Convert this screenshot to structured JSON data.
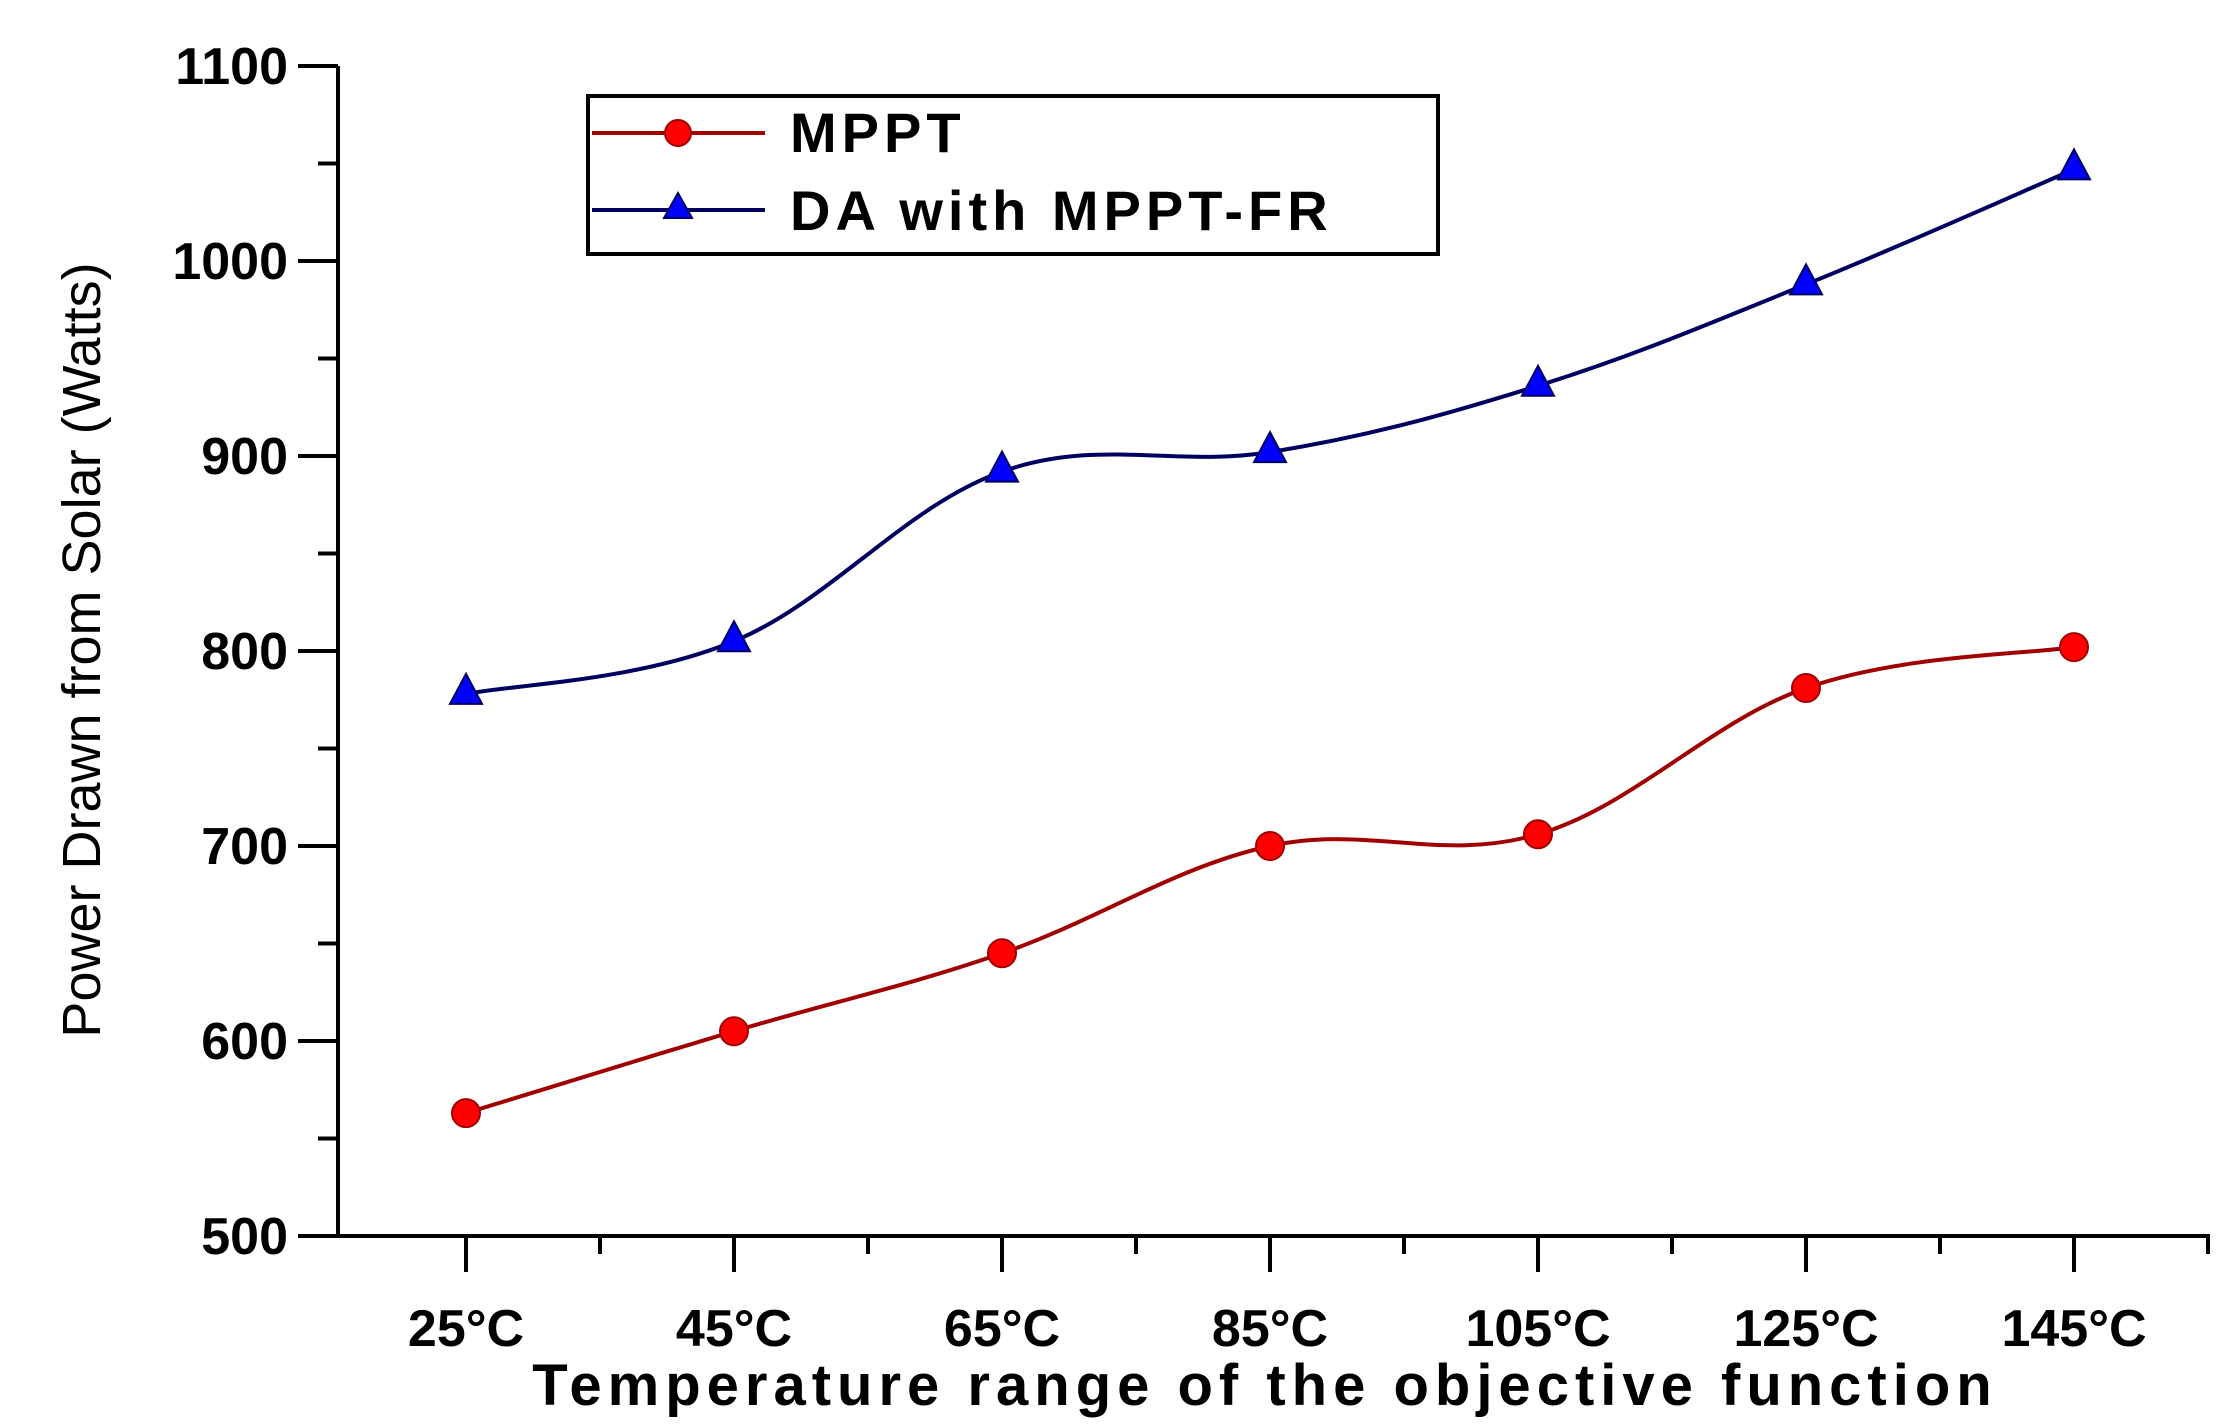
{
  "chart_data": {
    "type": "line",
    "title": "",
    "xlabel": "Temperature range of the objective function",
    "ylabel": "Power Drawn from Solar (Watts)",
    "categories": [
      "25°C",
      "45°C",
      "65°C",
      "85°C",
      "105°C",
      "125°C",
      "145°C"
    ],
    "ylim": [
      500,
      1100
    ],
    "yticks": [
      "500",
      "600",
      "700",
      "800",
      "900",
      "1000",
      "1100"
    ],
    "grid": false,
    "legend_position": "top-left",
    "series": [
      {
        "name": "MPPT",
        "color": "#a00000",
        "marker_color": "#ff0000",
        "marker": "circle",
        "values": [
          563,
          605,
          645,
          700,
          706,
          781,
          802
        ]
      },
      {
        "name": "DA with MPPT-FR",
        "color": "#000060",
        "marker_color": "#0000ff",
        "marker": "triangle",
        "values": [
          778,
          805,
          892,
          902,
          936,
          988,
          1047
        ]
      }
    ]
  }
}
